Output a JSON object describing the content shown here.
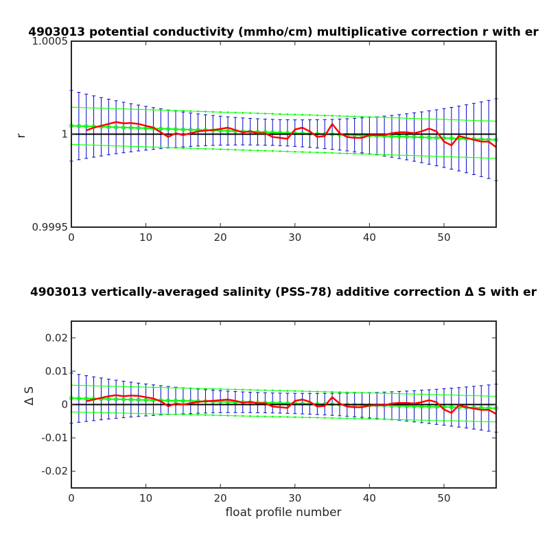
{
  "chart_data": [
    {
      "type": "line",
      "title": "4903013 potential conductivity (mmho/cm) multiplicative correction r with er",
      "xlabel": "",
      "ylabel": "r",
      "xlim": [
        0,
        57
      ],
      "ylim": [
        0.9995,
        1.0005
      ],
      "xticks": [
        0,
        10,
        20,
        30,
        40,
        50
      ],
      "xtick_labels": [
        "0",
        "10",
        "20",
        "30",
        "40",
        "50"
      ],
      "yticks": [
        0.9995,
        1,
        1.0005
      ],
      "ytick_labels": [
        "0.9995",
        "1",
        "1.0005"
      ],
      "reference_line": 1,
      "series": [
        {
          "role": "raw",
          "color": "#ff0000",
          "x": [
            2,
            3,
            4,
            5,
            6,
            7,
            8,
            9,
            10,
            11,
            12,
            13,
            14,
            15,
            16,
            17,
            18,
            19,
            20,
            21,
            22,
            23,
            24,
            25,
            26,
            27,
            28,
            29,
            30,
            31,
            32,
            33,
            34,
            35,
            36,
            37,
            38,
            39,
            40,
            41,
            42,
            43,
            44,
            45,
            46,
            47,
            48,
            49,
            50,
            51,
            52,
            53,
            54,
            55,
            56,
            57
          ],
          "y": [
            1.00002,
            1.000035,
            1.000045,
            1.000055,
            1.000065,
            1.000058,
            1.00006,
            1.000055,
            1.000045,
            1.000035,
            1.00001,
            0.999985,
            1.000005,
            0.999995,
            1.000005,
            1.000015,
            1.00002,
            1.000022,
            1.000028,
            1.000035,
            1.000022,
            1.00001,
            1.000015,
            1.000005,
            1.000005,
            0.999985,
            0.99998,
            0.999975,
            1.000025,
            1.000035,
            1.000015,
            0.999985,
            0.99999,
            1.000055,
            1.000005,
            0.999985,
            0.99998,
            0.99998,
            0.999995,
            0.999995,
            0.999995,
            1.000005,
            1.00001,
            1.00001,
            1.000005,
            1.000015,
            1.00003,
            1.000015,
            0.99996,
            0.99994,
            0.99999,
            0.99998,
            0.99997,
            0.99996,
            0.99996,
            0.99993
          ]
        },
        {
          "role": "fit",
          "color": "#00ff00",
          "x0": 0,
          "x1": 57,
          "y0": 1.000045,
          "y1": 0.99997
        },
        {
          "role": "fit_error_bound",
          "color": "#00ff00",
          "upper": [
            1.000145,
            1.00007
          ],
          "lower": [
            0.999945,
            0.99987
          ],
          "center": 1.0,
          "center_x": 28
        },
        {
          "role": "error_bars",
          "color": "#0000cc",
          "half_width_start": 0.00019,
          "half_width_min": 7e-05,
          "half_width_min_x": 27,
          "half_width_end": 0.00022
        }
      ]
    },
    {
      "type": "line",
      "title": "4903013 vertically-averaged salinity (PSS-78) additive correction Δ S with er",
      "xlabel": "float profile number",
      "ylabel": "Δ S",
      "xlim": [
        0,
        57
      ],
      "ylim": [
        -0.025,
        0.025
      ],
      "xticks": [
        0,
        10,
        20,
        30,
        40,
        50
      ],
      "xtick_labels": [
        "0",
        "10",
        "20",
        "30",
        "40",
        "50"
      ],
      "yticks": [
        -0.02,
        -0.01,
        0,
        0.01,
        0.02
      ],
      "ytick_labels": [
        "-0.02",
        "-0.01",
        "0",
        "0.01",
        "0.02"
      ],
      "reference_line": 0,
      "series": [
        {
          "role": "raw",
          "color": "#ff0000",
          "x": [
            2,
            3,
            4,
            5,
            6,
            7,
            8,
            9,
            10,
            11,
            12,
            13,
            14,
            15,
            16,
            17,
            18,
            19,
            20,
            21,
            22,
            23,
            24,
            25,
            26,
            27,
            28,
            29,
            30,
            31,
            32,
            33,
            34,
            35,
            36,
            37,
            38,
            39,
            40,
            41,
            42,
            43,
            44,
            45,
            46,
            47,
            48,
            49,
            50,
            51,
            52,
            53,
            54,
            55,
            56,
            57
          ],
          "y": [
            0.001,
            0.0015,
            0.002,
            0.0025,
            0.0028,
            0.0025,
            0.0027,
            0.0026,
            0.0022,
            0.0018,
            0.001,
            -0.0005,
            0.0003,
            0.0,
            0.0004,
            0.0008,
            0.001,
            0.0011,
            0.0013,
            0.0015,
            0.0011,
            0.0006,
            0.0008,
            0.0004,
            0.0004,
            -0.0006,
            -0.0008,
            -0.001,
            0.0011,
            0.0015,
            0.0008,
            -0.0006,
            -0.0004,
            0.0022,
            0.0003,
            -0.0006,
            -0.0008,
            -0.0008,
            -0.0003,
            -0.0002,
            -0.0002,
            0.0003,
            0.0005,
            0.0005,
            0.0003,
            0.0007,
            0.0013,
            0.0007,
            -0.0015,
            -0.0025,
            -0.0002,
            -0.0008,
            -0.0012,
            -0.0016,
            -0.0016,
            -0.0028
          ]
        },
        {
          "role": "fit",
          "color": "#00ff00",
          "x0": 0,
          "x1": 57,
          "y0": 0.0019,
          "y1": -0.0011
        },
        {
          "role": "fit_error_bound",
          "color": "#00ff00",
          "upper": [
            0.0058,
            0.0025
          ],
          "lower": [
            -0.0022,
            -0.0052
          ],
          "center": 0.0,
          "center_x": 28
        },
        {
          "role": "error_bars",
          "color": "#0000cc",
          "half_width_start": 0.0075,
          "half_width_min": 0.003,
          "half_width_min_x": 27,
          "half_width_end": 0.0072
        }
      ]
    }
  ]
}
